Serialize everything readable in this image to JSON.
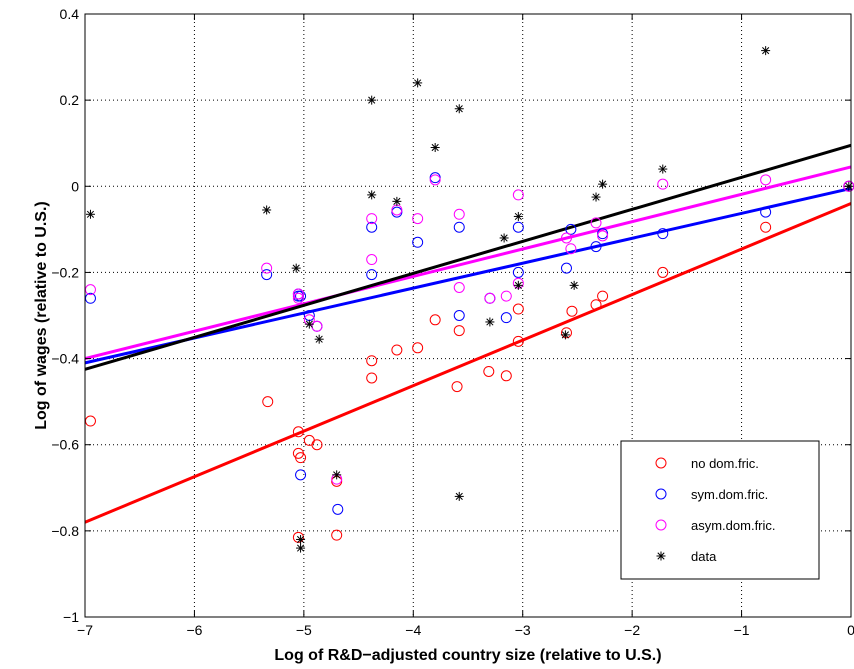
{
  "chart_data": {
    "type": "scatter",
    "xlabel": "Log of R&D−adjusted country size (relative to U.S.)",
    "ylabel": "Log of wages (relative to U.S.)",
    "xlim": [
      -7,
      0
    ],
    "ylim": [
      -1,
      0.4
    ],
    "xticks": [
      -7,
      -6,
      -5,
      -4,
      -3,
      -2,
      -1,
      0
    ],
    "xtick_labels": [
      "−7",
      "−6",
      "−5",
      "−4",
      "−3",
      "−2",
      "−1",
      "0"
    ],
    "yticks": [
      -1,
      -0.8,
      -0.6,
      -0.4,
      -0.2,
      0,
      0.2,
      0.4
    ],
    "ytick_labels": [
      "−1",
      "−0.8",
      "−0.6",
      "−0.4",
      "−0.2",
      "0",
      "0.2",
      "0.4"
    ],
    "grid": true,
    "legend_position": "bottom-right",
    "series": [
      {
        "name": "no dom.fric.",
        "color": "#ff0000",
        "marker": "circle",
        "points": [
          [
            -6.95,
            -0.545
          ],
          [
            -5.33,
            -0.5
          ],
          [
            -5.05,
            -0.57
          ],
          [
            -5.05,
            -0.62
          ],
          [
            -5.03,
            -0.63
          ],
          [
            -4.95,
            -0.59
          ],
          [
            -4.88,
            -0.6
          ],
          [
            -5.05,
            -0.815
          ],
          [
            -4.7,
            -0.685
          ],
          [
            -4.7,
            -0.81
          ],
          [
            -4.38,
            -0.405
          ],
          [
            -4.38,
            -0.445
          ],
          [
            -4.15,
            -0.38
          ],
          [
            -3.96,
            -0.375
          ],
          [
            -3.8,
            -0.31
          ],
          [
            -3.58,
            -0.335
          ],
          [
            -3.6,
            -0.465
          ],
          [
            -3.31,
            -0.43
          ],
          [
            -3.15,
            -0.44
          ],
          [
            -3.04,
            -0.285
          ],
          [
            -3.04,
            -0.36
          ],
          [
            -2.6,
            -0.34
          ],
          [
            -2.55,
            -0.29
          ],
          [
            -2.33,
            -0.275
          ],
          [
            -2.27,
            -0.255
          ],
          [
            -1.72,
            -0.2
          ],
          [
            -0.78,
            -0.095
          ],
          [
            -0.02,
            0.0
          ]
        ],
        "fit_line": [
          [
            -7,
            -0.78
          ],
          [
            0,
            -0.04
          ]
        ]
      },
      {
        "name": "sym.dom.fric.",
        "color": "#0000ff",
        "marker": "circle",
        "points": [
          [
            -6.95,
            -0.26
          ],
          [
            -5.34,
            -0.205
          ],
          [
            -5.05,
            -0.25
          ],
          [
            -5.05,
            -0.255
          ],
          [
            -5.03,
            -0.255
          ],
          [
            -4.95,
            -0.3
          ],
          [
            -4.88,
            -0.325
          ],
          [
            -5.03,
            -0.67
          ],
          [
            -4.69,
            -0.75
          ],
          [
            -4.38,
            -0.095
          ],
          [
            -4.38,
            -0.205
          ],
          [
            -4.15,
            -0.06
          ],
          [
            -3.96,
            -0.13
          ],
          [
            -3.8,
            0.02
          ],
          [
            -3.58,
            -0.095
          ],
          [
            -3.58,
            -0.3
          ],
          [
            -3.3,
            -0.26
          ],
          [
            -3.15,
            -0.305
          ],
          [
            -3.04,
            -0.095
          ],
          [
            -3.04,
            -0.2
          ],
          [
            -2.6,
            -0.19
          ],
          [
            -2.56,
            -0.1
          ],
          [
            -2.33,
            -0.14
          ],
          [
            -2.27,
            -0.11
          ],
          [
            -1.72,
            -0.11
          ],
          [
            -0.78,
            -0.06
          ],
          [
            -0.02,
            0.0
          ]
        ],
        "fit_line": [
          [
            -7,
            -0.41
          ],
          [
            0,
            -0.005
          ]
        ]
      },
      {
        "name": "asym.dom.fric.",
        "color": "#ff00ff",
        "marker": "circle",
        "points": [
          [
            -6.95,
            -0.24
          ],
          [
            -5.34,
            -0.19
          ],
          [
            -5.05,
            -0.25
          ],
          [
            -5.05,
            -0.26
          ],
          [
            -4.95,
            -0.31
          ],
          [
            -4.88,
            -0.325
          ],
          [
            -4.7,
            -0.68
          ],
          [
            -4.38,
            -0.075
          ],
          [
            -4.38,
            -0.17
          ],
          [
            -4.15,
            -0.055
          ],
          [
            -3.96,
            -0.075
          ],
          [
            -3.8,
            0.015
          ],
          [
            -3.58,
            -0.065
          ],
          [
            -3.58,
            -0.235
          ],
          [
            -3.3,
            -0.26
          ],
          [
            -3.15,
            -0.255
          ],
          [
            -3.04,
            -0.02
          ],
          [
            -3.04,
            -0.225
          ],
          [
            -2.6,
            -0.12
          ],
          [
            -2.56,
            -0.145
          ],
          [
            -2.33,
            -0.085
          ],
          [
            -2.27,
            -0.115
          ],
          [
            -1.72,
            0.005
          ],
          [
            -0.78,
            0.015
          ],
          [
            -0.02,
            0.0
          ]
        ],
        "fit_line": [
          [
            -7,
            -0.4
          ],
          [
            0,
            0.045
          ]
        ]
      },
      {
        "name": "data",
        "color": "#000000",
        "marker": "asterisk",
        "points": [
          [
            -6.95,
            -0.065
          ],
          [
            -5.34,
            -0.055
          ],
          [
            -5.07,
            -0.19
          ],
          [
            -4.95,
            -0.32
          ],
          [
            -4.86,
            -0.355
          ],
          [
            -5.03,
            -0.82
          ],
          [
            -5.03,
            -0.84
          ],
          [
            -4.7,
            -0.67
          ],
          [
            -4.38,
            0.2
          ],
          [
            -4.38,
            -0.02
          ],
          [
            -4.15,
            -0.035
          ],
          [
            -3.96,
            0.24
          ],
          [
            -3.8,
            0.09
          ],
          [
            -3.58,
            0.18
          ],
          [
            -3.58,
            -0.72
          ],
          [
            -3.3,
            -0.315
          ],
          [
            -3.17,
            -0.12
          ],
          [
            -3.04,
            -0.07
          ],
          [
            -3.04,
            -0.23
          ],
          [
            -2.61,
            -0.345
          ],
          [
            -2.53,
            -0.23
          ],
          [
            -2.33,
            -0.025
          ],
          [
            -2.27,
            0.005
          ],
          [
            -1.72,
            0.04
          ],
          [
            -0.78,
            0.315
          ],
          [
            -0.02,
            0.0
          ]
        ],
        "fit_line": [
          [
            -7,
            -0.425
          ],
          [
            0,
            0.095
          ]
        ]
      }
    ]
  }
}
